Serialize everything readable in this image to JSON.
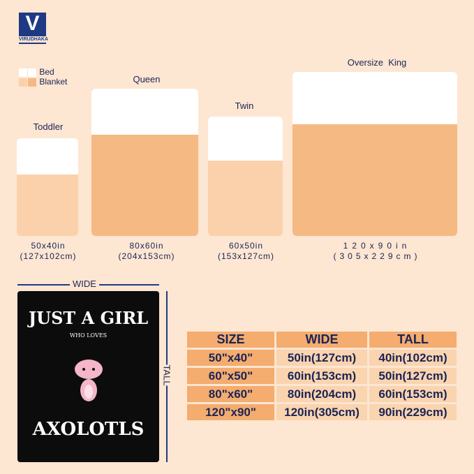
{
  "brand": {
    "logo_letter": "V",
    "name": "VIRUDHAKA"
  },
  "legend": {
    "bed": "Bed",
    "blanket": "Blanket"
  },
  "beds": [
    {
      "name": "Toddler",
      "size_in": "50x40in",
      "size_cm": "(127x102cm)"
    },
    {
      "name": "Queen",
      "size_in": "80x60in",
      "size_cm": "(204x153cm)"
    },
    {
      "name": "Twin",
      "size_in": "60x50in",
      "size_cm": "(153x127cm)"
    },
    {
      "name": "Oversize  King",
      "size_in": "120x90in",
      "size_cm": "(305x229cm)"
    }
  ],
  "blanket_preview": {
    "line1": "JUST A GIRL",
    "line2": "WHO LOVES",
    "line3": "AXOLOTLS",
    "wide_label": "WIDE",
    "tall_label": "TALL"
  },
  "table": {
    "headers": [
      "SIZE",
      "WIDE",
      "TALL"
    ],
    "rows": [
      [
        "50\"x40\"",
        "50in(127cm)",
        "40in(102cm)"
      ],
      [
        "60\"x50\"",
        "60in(153cm)",
        "50in(127cm)"
      ],
      [
        "80\"x60\"",
        "80in(204cm)",
        "60in(153cm)"
      ],
      [
        "120\"x90\"",
        "120in(305cm)",
        "90in(229cm)"
      ]
    ]
  },
  "colors": {
    "background": "#fde6d2",
    "blanket": "#f5b983",
    "header": "#f4ac6f",
    "cell": "#fad4af",
    "text": "#1a2455",
    "brand": "#1f3a84"
  }
}
